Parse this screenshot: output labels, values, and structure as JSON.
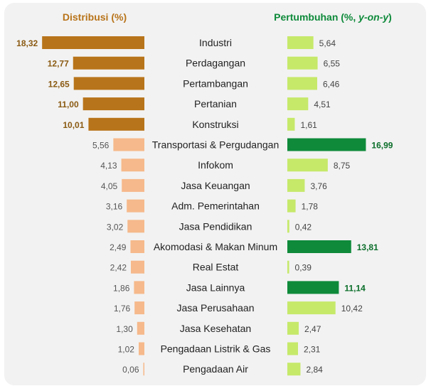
{
  "chart_data": {
    "type": "bar",
    "left_title": "Distribusi (%)",
    "right_title_main": "Pertumbuhan (%, ",
    "right_title_italic": "y-on-y",
    "right_title_end": ")",
    "categories": [
      "Industri",
      "Perdagangan",
      "Pertambangan",
      "Pertanian",
      "Konstruksi",
      "Transportasi & Pergudangan",
      "Infokom",
      "Jasa Keuangan",
      "Adm. Pemerintahan",
      "Jasa Pendidikan",
      "Akomodasi & Makan Minum",
      "Real Estat",
      "Jasa Lainnya",
      "Jasa Perusahaan",
      "Jasa Kesehatan",
      "Pengadaan Listrik & Gas",
      "Pengadaan Air"
    ],
    "distribution": [
      18.32,
      12.77,
      12.65,
      11.0,
      10.01,
      5.56,
      4.13,
      4.05,
      3.16,
      3.02,
      2.49,
      2.42,
      1.86,
      1.76,
      1.3,
      1.02,
      0.06
    ],
    "distribution_labels": [
      "18,32",
      "12,77",
      "12,65",
      "11,00",
      "10,01",
      "5,56",
      "4,13",
      "4,05",
      "3,16",
      "3,02",
      "2,49",
      "2,42",
      "1,86",
      "1,76",
      "1,30",
      "1,02",
      "0,06"
    ],
    "growth": [
      5.64,
      6.55,
      6.46,
      4.51,
      1.61,
      16.99,
      8.75,
      3.76,
      1.78,
      0.42,
      13.81,
      0.39,
      11.14,
      10.42,
      2.47,
      2.31,
      2.84
    ],
    "growth_labels": [
      "5,64",
      "6,55",
      "6,46",
      "4,51",
      "1,61",
      "16,99",
      "8,75",
      "3,76",
      "1,78",
      "0,42",
      "13,81",
      "0,39",
      "11,14",
      "10,42",
      "2,47",
      "2,31",
      "2,84"
    ],
    "top_distribution_count": 5,
    "top_growth_indices": [
      5,
      10,
      12
    ],
    "colors": {
      "dist_top": "#b8741a",
      "dist_other": "#f6b98b",
      "dist_label_top": "#8a5a12",
      "dist_label_other": "#555555",
      "growth_top": "#0e8a3a",
      "growth_other": "#c6e96a",
      "growth_label_top": "#0b6e2a",
      "growth_label_other": "#444444",
      "left_title": "#b8741a",
      "right_title": "#0e8a3a",
      "category_text": "#222222",
      "panel": "#f2f2f2"
    }
  }
}
